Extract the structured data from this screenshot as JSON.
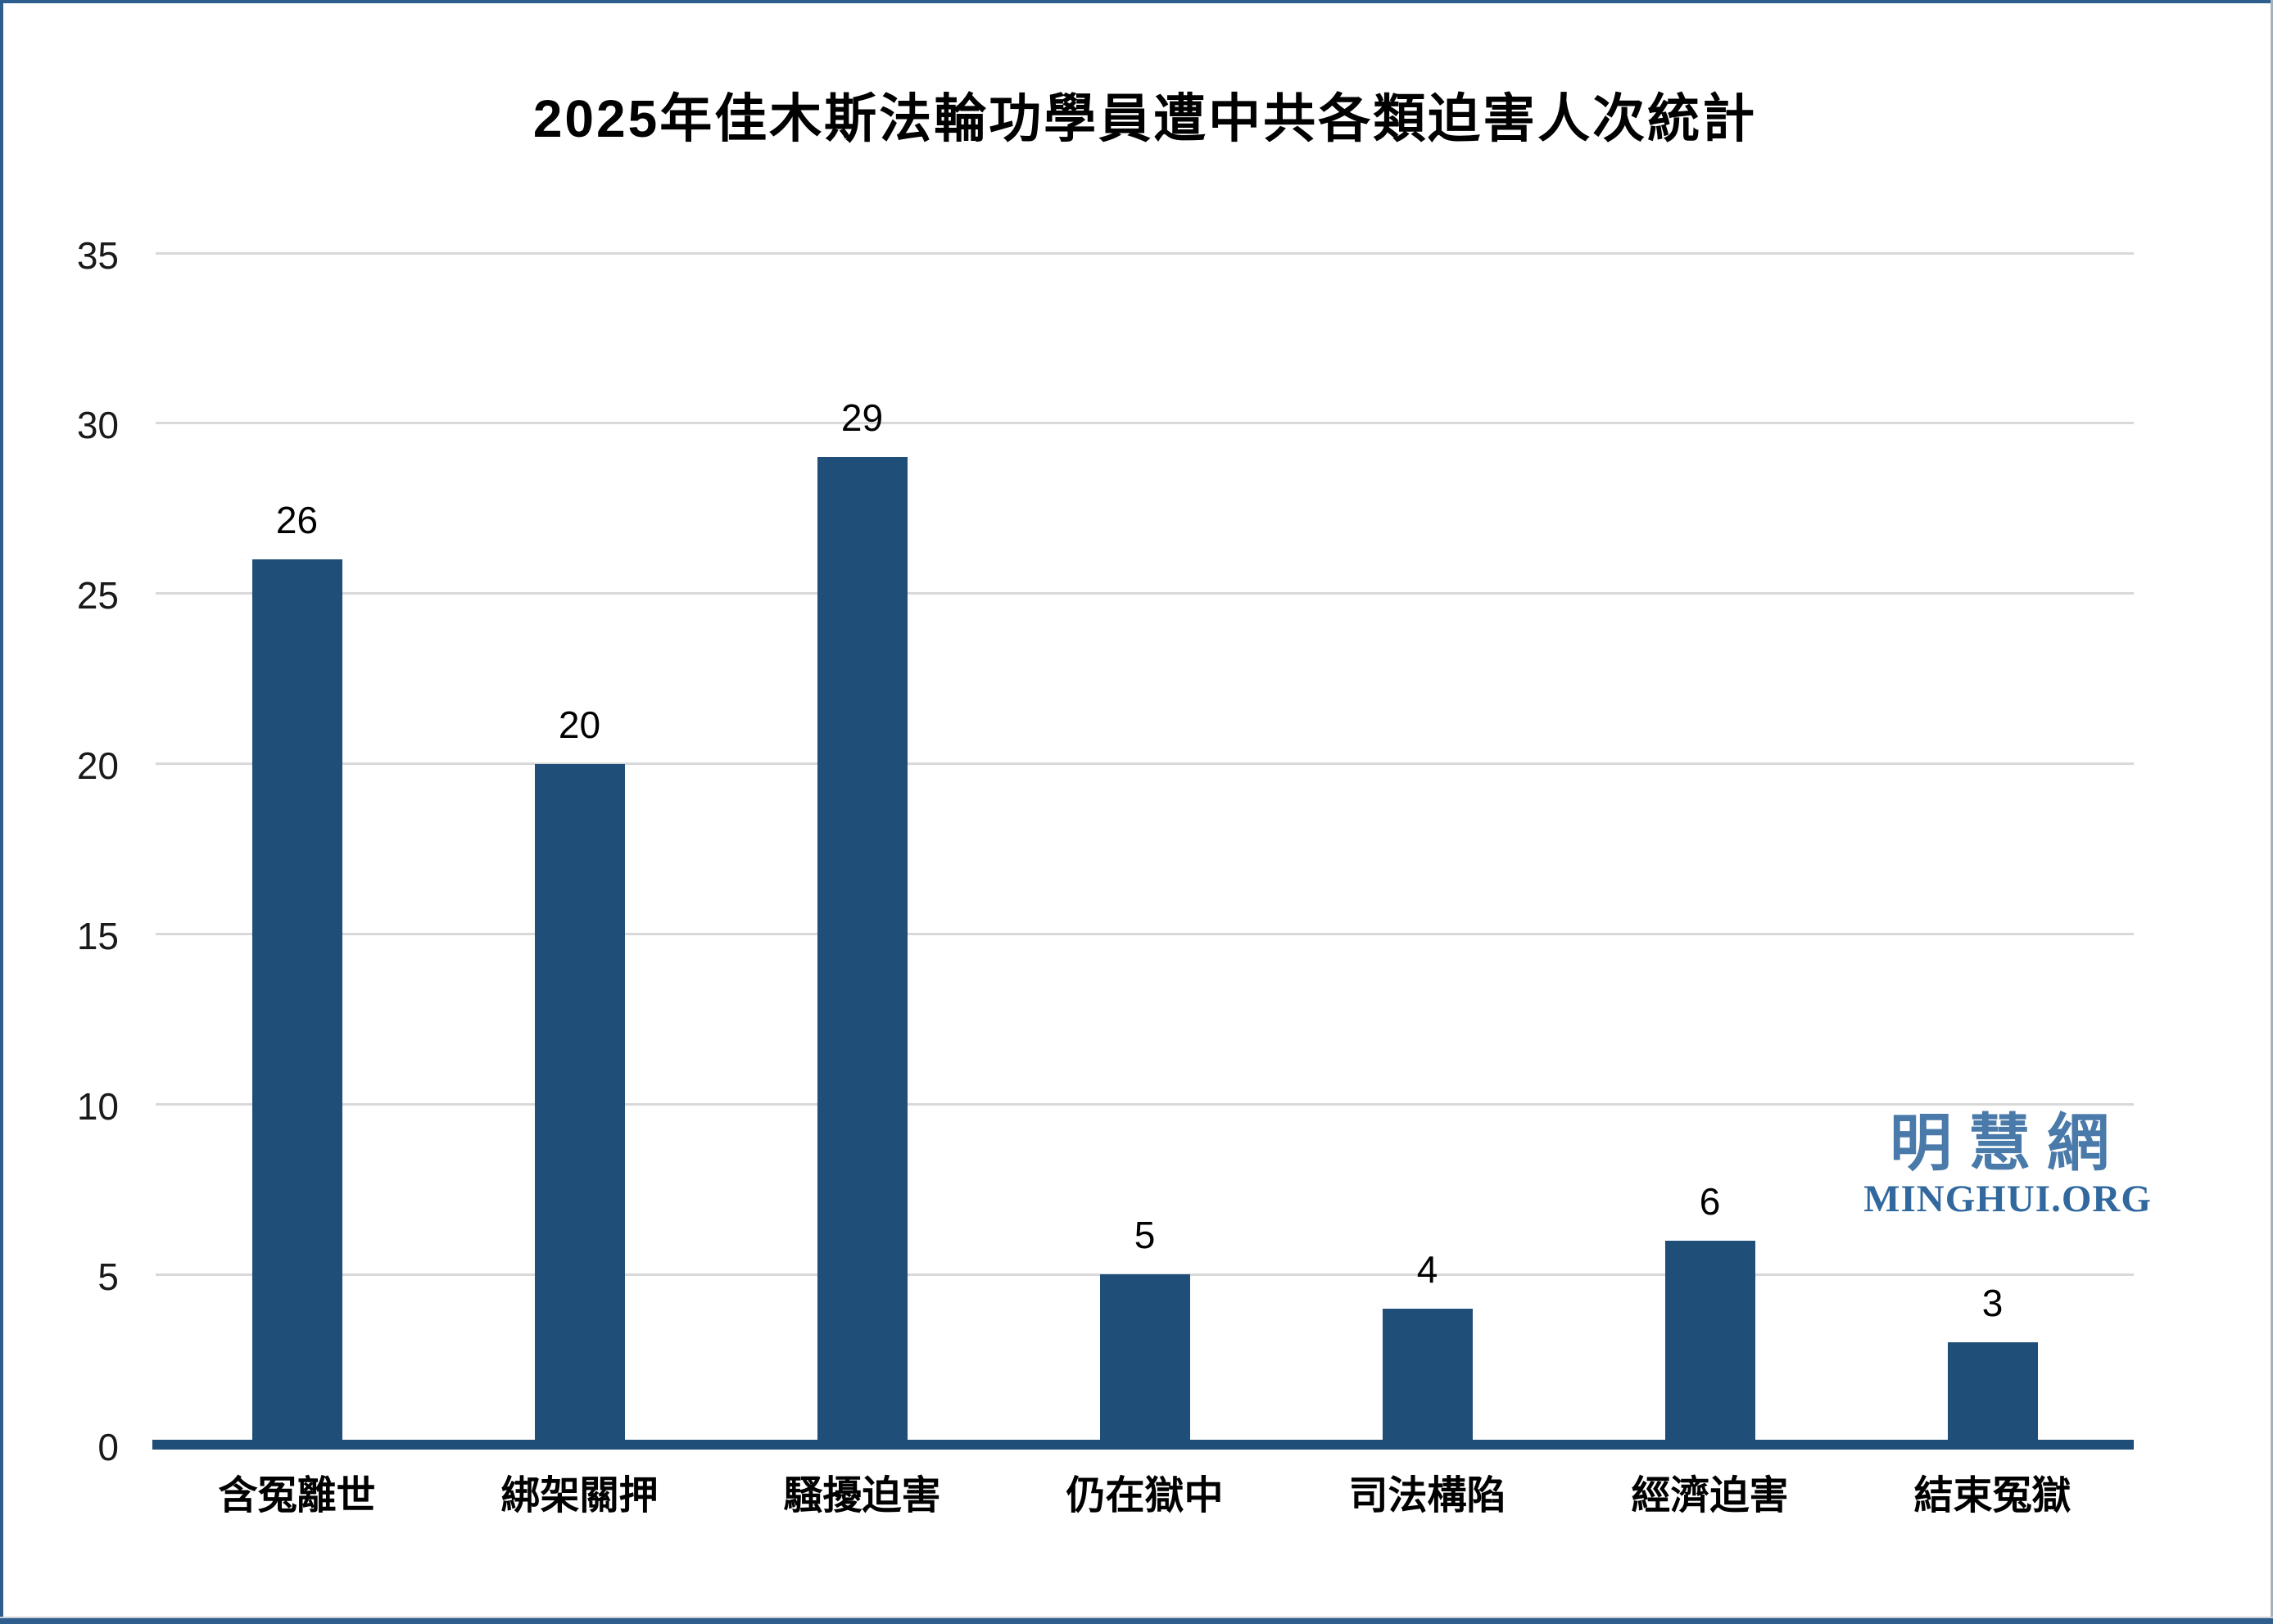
{
  "title": "2025年佳木斯法輪功學員遭中共各類迫害人次統計",
  "watermark": {
    "cjk": "明慧網",
    "latin": "MINGHUI.ORG"
  },
  "colors": {
    "bar": "#1F4E79",
    "axis_line": "#1F4E79",
    "gridline": "#D9D9D9",
    "title_text": "#000000",
    "tick_text": "#1A1A1A",
    "value_text": "#000000",
    "category_text": "#000000",
    "watermark_cjk": "#4A7AA9",
    "watermark_latin": "#31689E",
    "frame_blue": "#2E5E8E",
    "frame_gray": "#A9B1BB",
    "frame_bottom_gray": "#C9CDD3",
    "background": "#FFFFFF"
  },
  "chart_data": {
    "type": "bar",
    "title": "2025年佳木斯法輪功學員遭中共各類迫害人次統計",
    "categories": [
      "含冤離世",
      "綁架關押",
      "騷擾迫害",
      "仍在獄中",
      "司法構陷",
      "經濟迫害",
      "結束冤獄"
    ],
    "values": [
      26,
      20,
      29,
      5,
      4,
      6,
      3
    ],
    "xlabel": "",
    "ylabel": "",
    "ylim": [
      0,
      35
    ],
    "yticks": [
      0,
      5,
      10,
      15,
      20,
      25,
      30,
      35
    ],
    "grid": true,
    "legend_position": "none",
    "data_labels": true,
    "bar_color": "#1F4E79"
  }
}
